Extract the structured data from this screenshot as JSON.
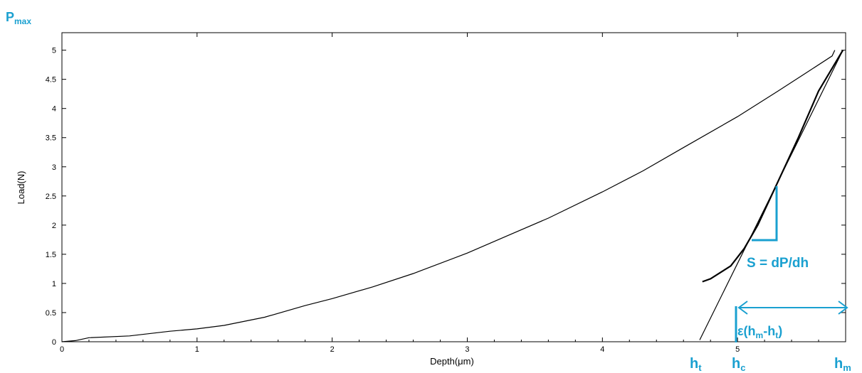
{
  "chart_data": {
    "type": "line",
    "xlabel": "Depth(μm)",
    "ylabel": "Load(N)",
    "xlim": [
      0,
      5.8
    ],
    "ylim": [
      0,
      5.3
    ],
    "x_ticks": [
      "0",
      "1",
      "2",
      "3",
      "4",
      "5"
    ],
    "y_ticks": [
      "0",
      "0.5",
      "1",
      "1.5",
      "2",
      "2.5",
      "3",
      "3.5",
      "4",
      "4.5",
      "5"
    ],
    "series": [
      {
        "points": [
          [
            0,
            0
          ],
          [
            0.1,
            0.02
          ],
          [
            0.2,
            0.07
          ],
          [
            0.5,
            0.1
          ],
          [
            0.8,
            0.18
          ],
          [
            1.0,
            0.22
          ],
          [
            1.2,
            0.28
          ],
          [
            1.5,
            0.42
          ],
          [
            1.8,
            0.62
          ],
          [
            2.0,
            0.74
          ],
          [
            2.3,
            0.94
          ],
          [
            2.6,
            1.17
          ],
          [
            3.0,
            1.52
          ],
          [
            3.3,
            1.82
          ],
          [
            3.6,
            2.12
          ],
          [
            4.0,
            2.57
          ],
          [
            4.3,
            2.93
          ],
          [
            4.6,
            3.33
          ],
          [
            5.0,
            3.86
          ],
          [
            5.3,
            4.3
          ],
          [
            5.5,
            4.6
          ],
          [
            5.7,
            4.9
          ],
          [
            5.72,
            5.0
          ]
        ]
      },
      {
        "points": [
          [
            5.78,
            5.0
          ],
          [
            5.6,
            4.3
          ],
          [
            5.45,
            3.5
          ],
          [
            5.35,
            3.0
          ],
          [
            5.25,
            2.5
          ],
          [
            5.15,
            2.0
          ],
          [
            5.05,
            1.6
          ],
          [
            4.95,
            1.3
          ],
          [
            4.8,
            1.08
          ],
          [
            4.74,
            1.03
          ]
        ]
      },
      {
        "points": [
          [
            4.72,
            0.03
          ],
          [
            5.78,
            5.0
          ]
        ]
      }
    ],
    "annotations": {
      "pmax": {
        "main": "P",
        "sub": "max"
      },
      "stiffness": "S = dP/dh",
      "epsilon": {
        "prefix": "ε(h",
        "sub1": "m",
        "mid": "-h",
        "sub2": "t",
        "suffix": ")"
      },
      "ht": {
        "main": "h",
        "sub": "t"
      },
      "hc": {
        "main": "h",
        "sub": "c"
      },
      "hm": {
        "main": "h",
        "sub": "m"
      }
    },
    "annotation_color": "#1aa0d0",
    "grid": false
  }
}
